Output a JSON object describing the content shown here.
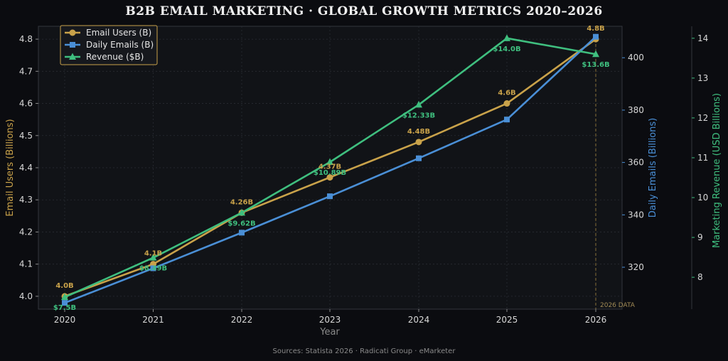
{
  "chart_data": {
    "type": "line",
    "title": "B2B EMAIL MARKETING  ·  GLOBAL GROWTH METRICS 2020–2026",
    "xlabel": "Year",
    "x": [
      "2020",
      "2021",
      "2022",
      "2023",
      "2024",
      "2025",
      "2026"
    ],
    "axes": {
      "left": {
        "label": "Email Users (Billions)",
        "range": [
          3.96,
          4.84
        ],
        "ticks": [
          "4.0",
          "4.1",
          "4.2",
          "4.3",
          "4.4",
          "4.5",
          "4.6",
          "4.7",
          "4.8"
        ],
        "color": "#c9a24a"
      },
      "right1": {
        "label": "Daily Emails (Billions)",
        "range": [
          304,
          412
        ],
        "ticks": [
          "320",
          "340",
          "360",
          "380",
          "400"
        ],
        "color": "#4a8fd6"
      },
      "right2": {
        "label": "Marketing Revenue (USD Billions)",
        "range": [
          7.2,
          14.3
        ],
        "ticks": [
          "8",
          "9",
          "10",
          "11",
          "12",
          "13",
          "14"
        ],
        "color": "#3fbf7f"
      }
    },
    "series": [
      {
        "name": "Email Users (B)",
        "axis": "left",
        "color": "#c9a24a",
        "marker": "circle",
        "values": [
          4.0,
          4.1,
          4.26,
          4.37,
          4.48,
          4.6,
          4.8
        ],
        "labels": [
          "4.0B",
          "4.1B",
          "4.26B",
          "4.37B",
          "4.48B",
          "4.6B",
          "4.8B"
        ]
      },
      {
        "name": "Daily Emails (B)",
        "axis": "right1",
        "color": "#4a8fd6",
        "marker": "square",
        "values": [
          306.4,
          319.6,
          333.2,
          347.1,
          361.6,
          376.4,
          408.0
        ]
      },
      {
        "name": "Revenue ($B)",
        "axis": "right2",
        "color": "#3fbf7f",
        "marker": "triangle",
        "values": [
          7.5,
          8.49,
          9.62,
          10.89,
          12.33,
          14.0,
          13.6
        ],
        "labels": [
          "$7.5B",
          "$8.49B",
          "$9.62B",
          "$10.89B",
          "$12.33B",
          "$14.0B",
          "$13.6B"
        ]
      }
    ],
    "annotations": [
      {
        "x": "2026",
        "text": "2026 DATA"
      }
    ],
    "grid": true,
    "legend": "top-left",
    "source": "Sources: Statista 2026 · Radicati Group · eMarketer"
  }
}
